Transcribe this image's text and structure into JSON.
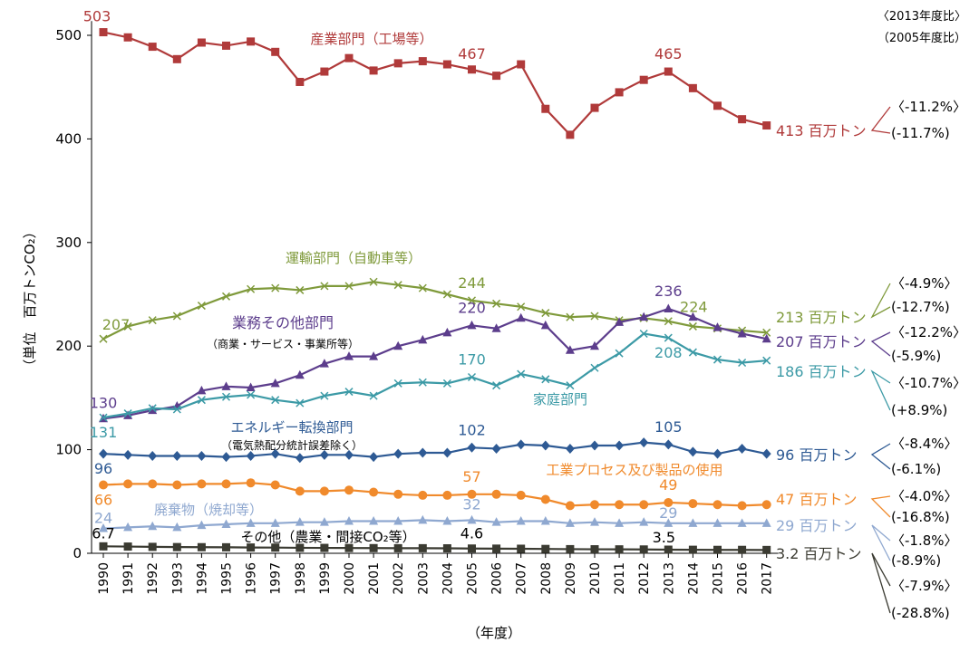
{
  "chart_data": {
    "type": "line",
    "xlabel": "（年度）",
    "ylabel": "（単位　百万トンCO₂）",
    "ylim": [
      0,
      500
    ],
    "yticks": [
      "0",
      "100",
      "200",
      "300",
      "400",
      "500"
    ],
    "categories": [
      "1990",
      "1991",
      "1992",
      "1993",
      "1994",
      "1995",
      "1996",
      "1997",
      "1998",
      "1999",
      "2000",
      "2001",
      "2002",
      "2003",
      "2004",
      "2005",
      "2006",
      "2007",
      "2008",
      "2009",
      "2010",
      "2011",
      "2012",
      "2013",
      "2014",
      "2015",
      "2016",
      "2017"
    ],
    "legend_header": [
      "〈2013年度比〉",
      "（2005年度比）"
    ],
    "grid": false,
    "series": [
      {
        "name": "産業部門（工場等）",
        "color": "#b03a3a",
        "marker": "square",
        "values": [
          503,
          498,
          489,
          477,
          493,
          490,
          494,
          484,
          455,
          465,
          478,
          466,
          473,
          475,
          472,
          467,
          461,
          472,
          429,
          404,
          430,
          445,
          457,
          465,
          449,
          432,
          419,
          413
        ],
        "labels": [
          {
            "i": 0,
            "text": "503"
          },
          {
            "i": 15,
            "text": "467"
          },
          {
            "i": 23,
            "text": "465"
          }
        ],
        "end": "413 百万トン",
        "pct2013": "〈-11.2%〉",
        "pct2005": "(-11.7%)"
      },
      {
        "name": "運輸部門（自動車等）",
        "color": "#7f9a3b",
        "marker": "x",
        "values": [
          207,
          219,
          225,
          229,
          239,
          248,
          255,
          256,
          254,
          258,
          258,
          262,
          259,
          256,
          250,
          244,
          241,
          238,
          232,
          228,
          229,
          225,
          227,
          224,
          219,
          217,
          215,
          213
        ],
        "labels": [
          {
            "i": 0,
            "text": "207"
          },
          {
            "i": 15,
            "text": "244"
          },
          {
            "i": 23,
            "text": "224"
          }
        ],
        "end": "213 百万トン",
        "pct2013": "〈-4.9%〉",
        "pct2005": "(-12.7%)"
      },
      {
        "name": "業務その他部門",
        "subname": "（商業・サービス・事業所等）",
        "color": "#5c3d8c",
        "marker": "triangle",
        "values": [
          130,
          133,
          138,
          142,
          157,
          161,
          160,
          164,
          172,
          183,
          190,
          190,
          200,
          206,
          213,
          220,
          217,
          227,
          220,
          196,
          200,
          223,
          228,
          236,
          228,
          218,
          212,
          207
        ],
        "labels": [
          {
            "i": 0,
            "text": "130"
          },
          {
            "i": 15,
            "text": "220"
          },
          {
            "i": 23,
            "text": "236"
          }
        ],
        "end": "207 百万トン",
        "pct2013": "〈-12.2%〉",
        "pct2005": "(-5.9%)"
      },
      {
        "name": "家庭部門",
        "color": "#3c9aa6",
        "marker": "x",
        "values": [
          131,
          135,
          140,
          139,
          148,
          151,
          153,
          148,
          145,
          152,
          156,
          152,
          164,
          165,
          164,
          170,
          162,
          173,
          168,
          162,
          179,
          193,
          212,
          208,
          194,
          187,
          184,
          186
        ],
        "labels": [
          {
            "i": 0,
            "text": "131"
          },
          {
            "i": 15,
            "text": "170"
          },
          {
            "i": 23,
            "text": "208"
          }
        ],
        "end": "186 百万トン",
        "pct2013": "〈-10.7%〉",
        "pct2005": "(+8.9%)"
      },
      {
        "name": "エネルギー転換部門",
        "subname": "（電気熱配分統計誤差除く）",
        "color": "#2e5a94",
        "marker": "diamond",
        "values": [
          96,
          95,
          94,
          94,
          94,
          93,
          94,
          96,
          92,
          95,
          95,
          93,
          96,
          97,
          97,
          102,
          101,
          105,
          104,
          101,
          104,
          104,
          107,
          105,
          98,
          96,
          101,
          96
        ],
        "labels": [
          {
            "i": 0,
            "text": "96"
          },
          {
            "i": 15,
            "text": "102"
          },
          {
            "i": 23,
            "text": "105"
          }
        ],
        "end": "96 百万トン",
        "pct2013": "〈-8.4%〉",
        "pct2005": "(-6.1%)"
      },
      {
        "name": "工業プロセス及び製品の使用",
        "color": "#f08a2c",
        "marker": "circle",
        "values": [
          66,
          67,
          67,
          66,
          67,
          67,
          68,
          66,
          60,
          60,
          61,
          59,
          57,
          56,
          56,
          57,
          57,
          56,
          52,
          46,
          47,
          47,
          47,
          49,
          48,
          47,
          46,
          47
        ],
        "labels": [
          {
            "i": 0,
            "text": "66"
          },
          {
            "i": 15,
            "text": "57"
          },
          {
            "i": 23,
            "text": "49"
          }
        ],
        "end": "47 百万トン",
        "pct2013": "〈-4.0%〉",
        "pct2005": "(-16.8%)"
      },
      {
        "name": "廃棄物（焼却等）",
        "color": "#8fa8d0",
        "marker": "triangle",
        "values": [
          24,
          25,
          26,
          25,
          27,
          28,
          29,
          29,
          30,
          30,
          31,
          31,
          31,
          32,
          31,
          32,
          30,
          31,
          31,
          29,
          30,
          29,
          30,
          29,
          29,
          29,
          29,
          29
        ],
        "labels": [
          {
            "i": 0,
            "text": "24"
          },
          {
            "i": 15,
            "text": "32"
          },
          {
            "i": 23,
            "text": "29"
          }
        ],
        "end": "29 百万トン",
        "pct2013": "〈-1.8%〉",
        "pct2005": "(-8.9%)"
      },
      {
        "name": "その他（農業・間接CO₂等）",
        "color": "#3b3b32",
        "marker": "square",
        "values": [
          6.7,
          6.5,
          6.2,
          6.0,
          5.9,
          5.8,
          5.6,
          5.5,
          5.3,
          5.2,
          5.1,
          5.0,
          4.9,
          4.9,
          4.8,
          4.6,
          4.5,
          4.4,
          4.2,
          4.0,
          3.9,
          3.8,
          3.7,
          3.5,
          3.4,
          3.3,
          3.3,
          3.2
        ],
        "labels": [
          {
            "i": 0,
            "text": "6.7"
          },
          {
            "i": 15,
            "text": "4.6"
          },
          {
            "i": 23,
            "text": "3.5"
          }
        ],
        "end": "3.2 百万トン",
        "pct2013": "〈-7.9%〉",
        "pct2005": "(-28.8%)"
      }
    ]
  }
}
